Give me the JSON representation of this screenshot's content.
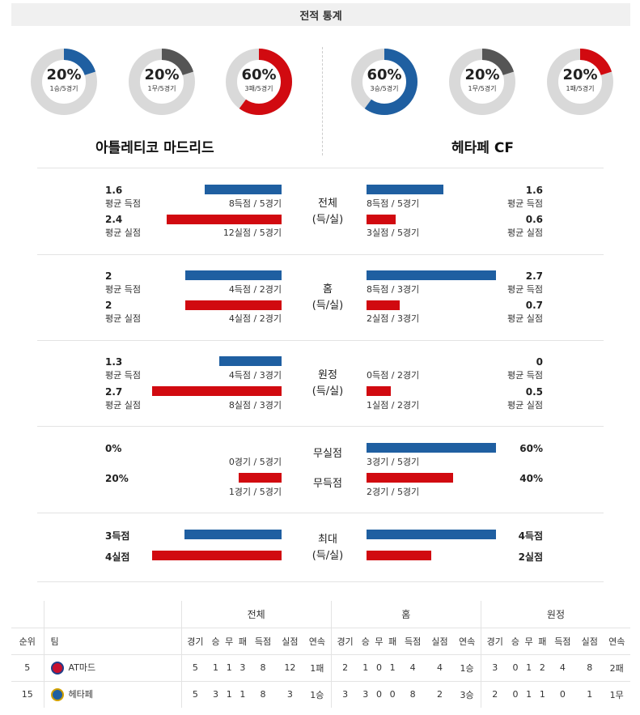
{
  "title": "전적 통계",
  "donuts": {
    "home": [
      {
        "pct": "20%",
        "sub": "1승/5경기",
        "fraction": 0.2,
        "color": "#1f5fa1"
      },
      {
        "pct": "20%",
        "sub": "1무/5경기",
        "fraction": 0.2,
        "color": "#555555"
      },
      {
        "pct": "60%",
        "sub": "3패/5경기",
        "fraction": 0.6,
        "color": "#d10a10"
      }
    ],
    "away": [
      {
        "pct": "60%",
        "sub": "3승/5경기",
        "fraction": 0.6,
        "color": "#1f5fa1"
      },
      {
        "pct": "20%",
        "sub": "1무/5경기",
        "fraction": 0.2,
        "color": "#555555"
      },
      {
        "pct": "20%",
        "sub": "1패/5경기",
        "fraction": 0.2,
        "color": "#d10a10"
      }
    ]
  },
  "teams": {
    "home": "아틀레티코 마드리드",
    "away": "헤타페 CF"
  },
  "sections": {
    "total": {
      "label1": "전체",
      "label2": "(득/실)",
      "home_scored": {
        "num": "1.6",
        "label": "평균 득점",
        "count": "8득점 / 5경기",
        "value": 1.6
      },
      "home_conceded": {
        "num": "2.4",
        "label": "평균 실점",
        "count": "12실점 / 5경기",
        "value": 2.4
      },
      "away_scored": {
        "num": "1.6",
        "label": "평균 득점",
        "count": "8득점 / 5경기",
        "value": 1.6
      },
      "away_conceded": {
        "num": "0.6",
        "label": "평균 실점",
        "count": "3실점 / 5경기",
        "value": 0.6
      }
    },
    "home_games": {
      "label1": "홈",
      "label2": "(득/실)",
      "home_scored": {
        "num": "2",
        "label": "평균 득점",
        "count": "4득점 / 2경기",
        "value": 2
      },
      "home_conceded": {
        "num": "2",
        "label": "평균 실점",
        "count": "4실점 / 2경기",
        "value": 2
      },
      "away_scored": {
        "num": "2.7",
        "label": "평균 득점",
        "count": "8득점 / 3경기",
        "value": 2.7
      },
      "away_conceded": {
        "num": "0.7",
        "label": "평균 실점",
        "count": "2실점 / 3경기",
        "value": 0.7
      }
    },
    "away_games": {
      "label1": "원정",
      "label2": "(득/실)",
      "home_scored": {
        "num": "1.3",
        "label": "평균 득점",
        "count": "4득점 / 3경기",
        "value": 1.3
      },
      "home_conceded": {
        "num": "2.7",
        "label": "평균 실점",
        "count": "8실점 / 3경기",
        "value": 2.7
      },
      "away_scored": {
        "num": "0",
        "label": "평균 득점",
        "count": "0득점 / 2경기",
        "value": 0
      },
      "away_conceded": {
        "num": "0.5",
        "label": "평균 실점",
        "count": "1실점 / 2경기",
        "value": 0.5
      }
    },
    "clean": {
      "label_clean": "무실점",
      "label_blank": "무득점",
      "home_clean": {
        "num": "0%",
        "count": "0경기 / 5경기",
        "value": 0
      },
      "home_blank": {
        "num": "20%",
        "count": "1경기 / 5경기",
        "value": 0.2
      },
      "away_clean": {
        "num": "60%",
        "count": "3경기 / 5경기",
        "value": 0.6
      },
      "away_blank": {
        "num": "40%",
        "count": "2경기 / 5경기",
        "value": 0.4
      }
    },
    "max": {
      "label1": "최대",
      "label2": "(득/실)",
      "home_scored": "3득점",
      "home_conceded": "4실점",
      "away_scored": "4득점",
      "away_conceded": "2실점",
      "home_scored_value": 3,
      "home_conceded_value": 4,
      "away_scored_value": 4,
      "away_conceded_value": 2
    }
  },
  "standings": {
    "groups": [
      "전체",
      "홈",
      "원정"
    ],
    "col_rank": "순위",
    "col_team": "팀",
    "cols": [
      "경기",
      "승",
      "무",
      "패",
      "득점",
      "실점",
      "연속"
    ],
    "rows": [
      {
        "rank": "5",
        "team": "AT마드",
        "crest_color": "#c8102e",
        "total": [
          "5",
          "1",
          "1",
          "3",
          "8",
          "12",
          "1패"
        ],
        "home": [
          "2",
          "1",
          "0",
          "1",
          "4",
          "4",
          "1승"
        ],
        "away": [
          "3",
          "0",
          "1",
          "2",
          "4",
          "8",
          "2패"
        ]
      },
      {
        "rank": "15",
        "team": "헤타페",
        "crest_color": "#1f5fa1",
        "total": [
          "5",
          "3",
          "1",
          "1",
          "8",
          "3",
          "1승"
        ],
        "home": [
          "3",
          "3",
          "0",
          "0",
          "8",
          "2",
          "3승"
        ],
        "away": [
          "2",
          "0",
          "1",
          "1",
          "0",
          "1",
          "1무"
        ]
      }
    ]
  }
}
